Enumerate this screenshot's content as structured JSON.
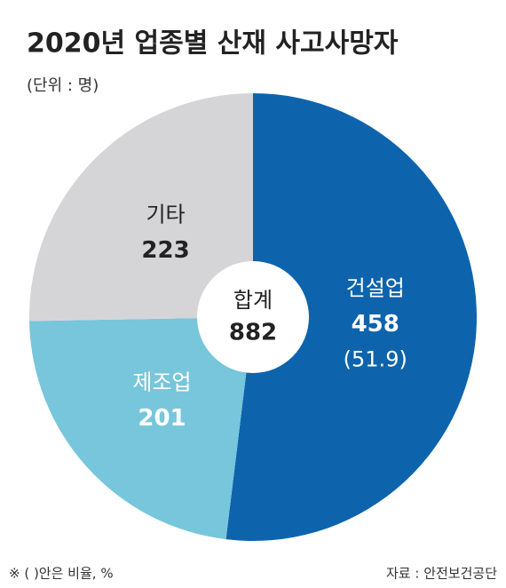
{
  "chart_data": {
    "type": "pie",
    "title": "2020년 업종별 산재 사고사망자",
    "subtitle": "(단위 : 명)",
    "categories": [
      "건설업",
      "제조업",
      "기타"
    ],
    "values": [
      458,
      201,
      223
    ],
    "colors": [
      "#0d64ad",
      "#77c6dc",
      "#d5d5d8"
    ],
    "shares": [
      {
        "value": 51.9,
        "label": "(51.9)"
      },
      null,
      null
    ],
    "total_label": "합계",
    "total": 882,
    "footnote": "※ (  )안은 비율, %",
    "source": "자료 : 안전보건공단"
  }
}
